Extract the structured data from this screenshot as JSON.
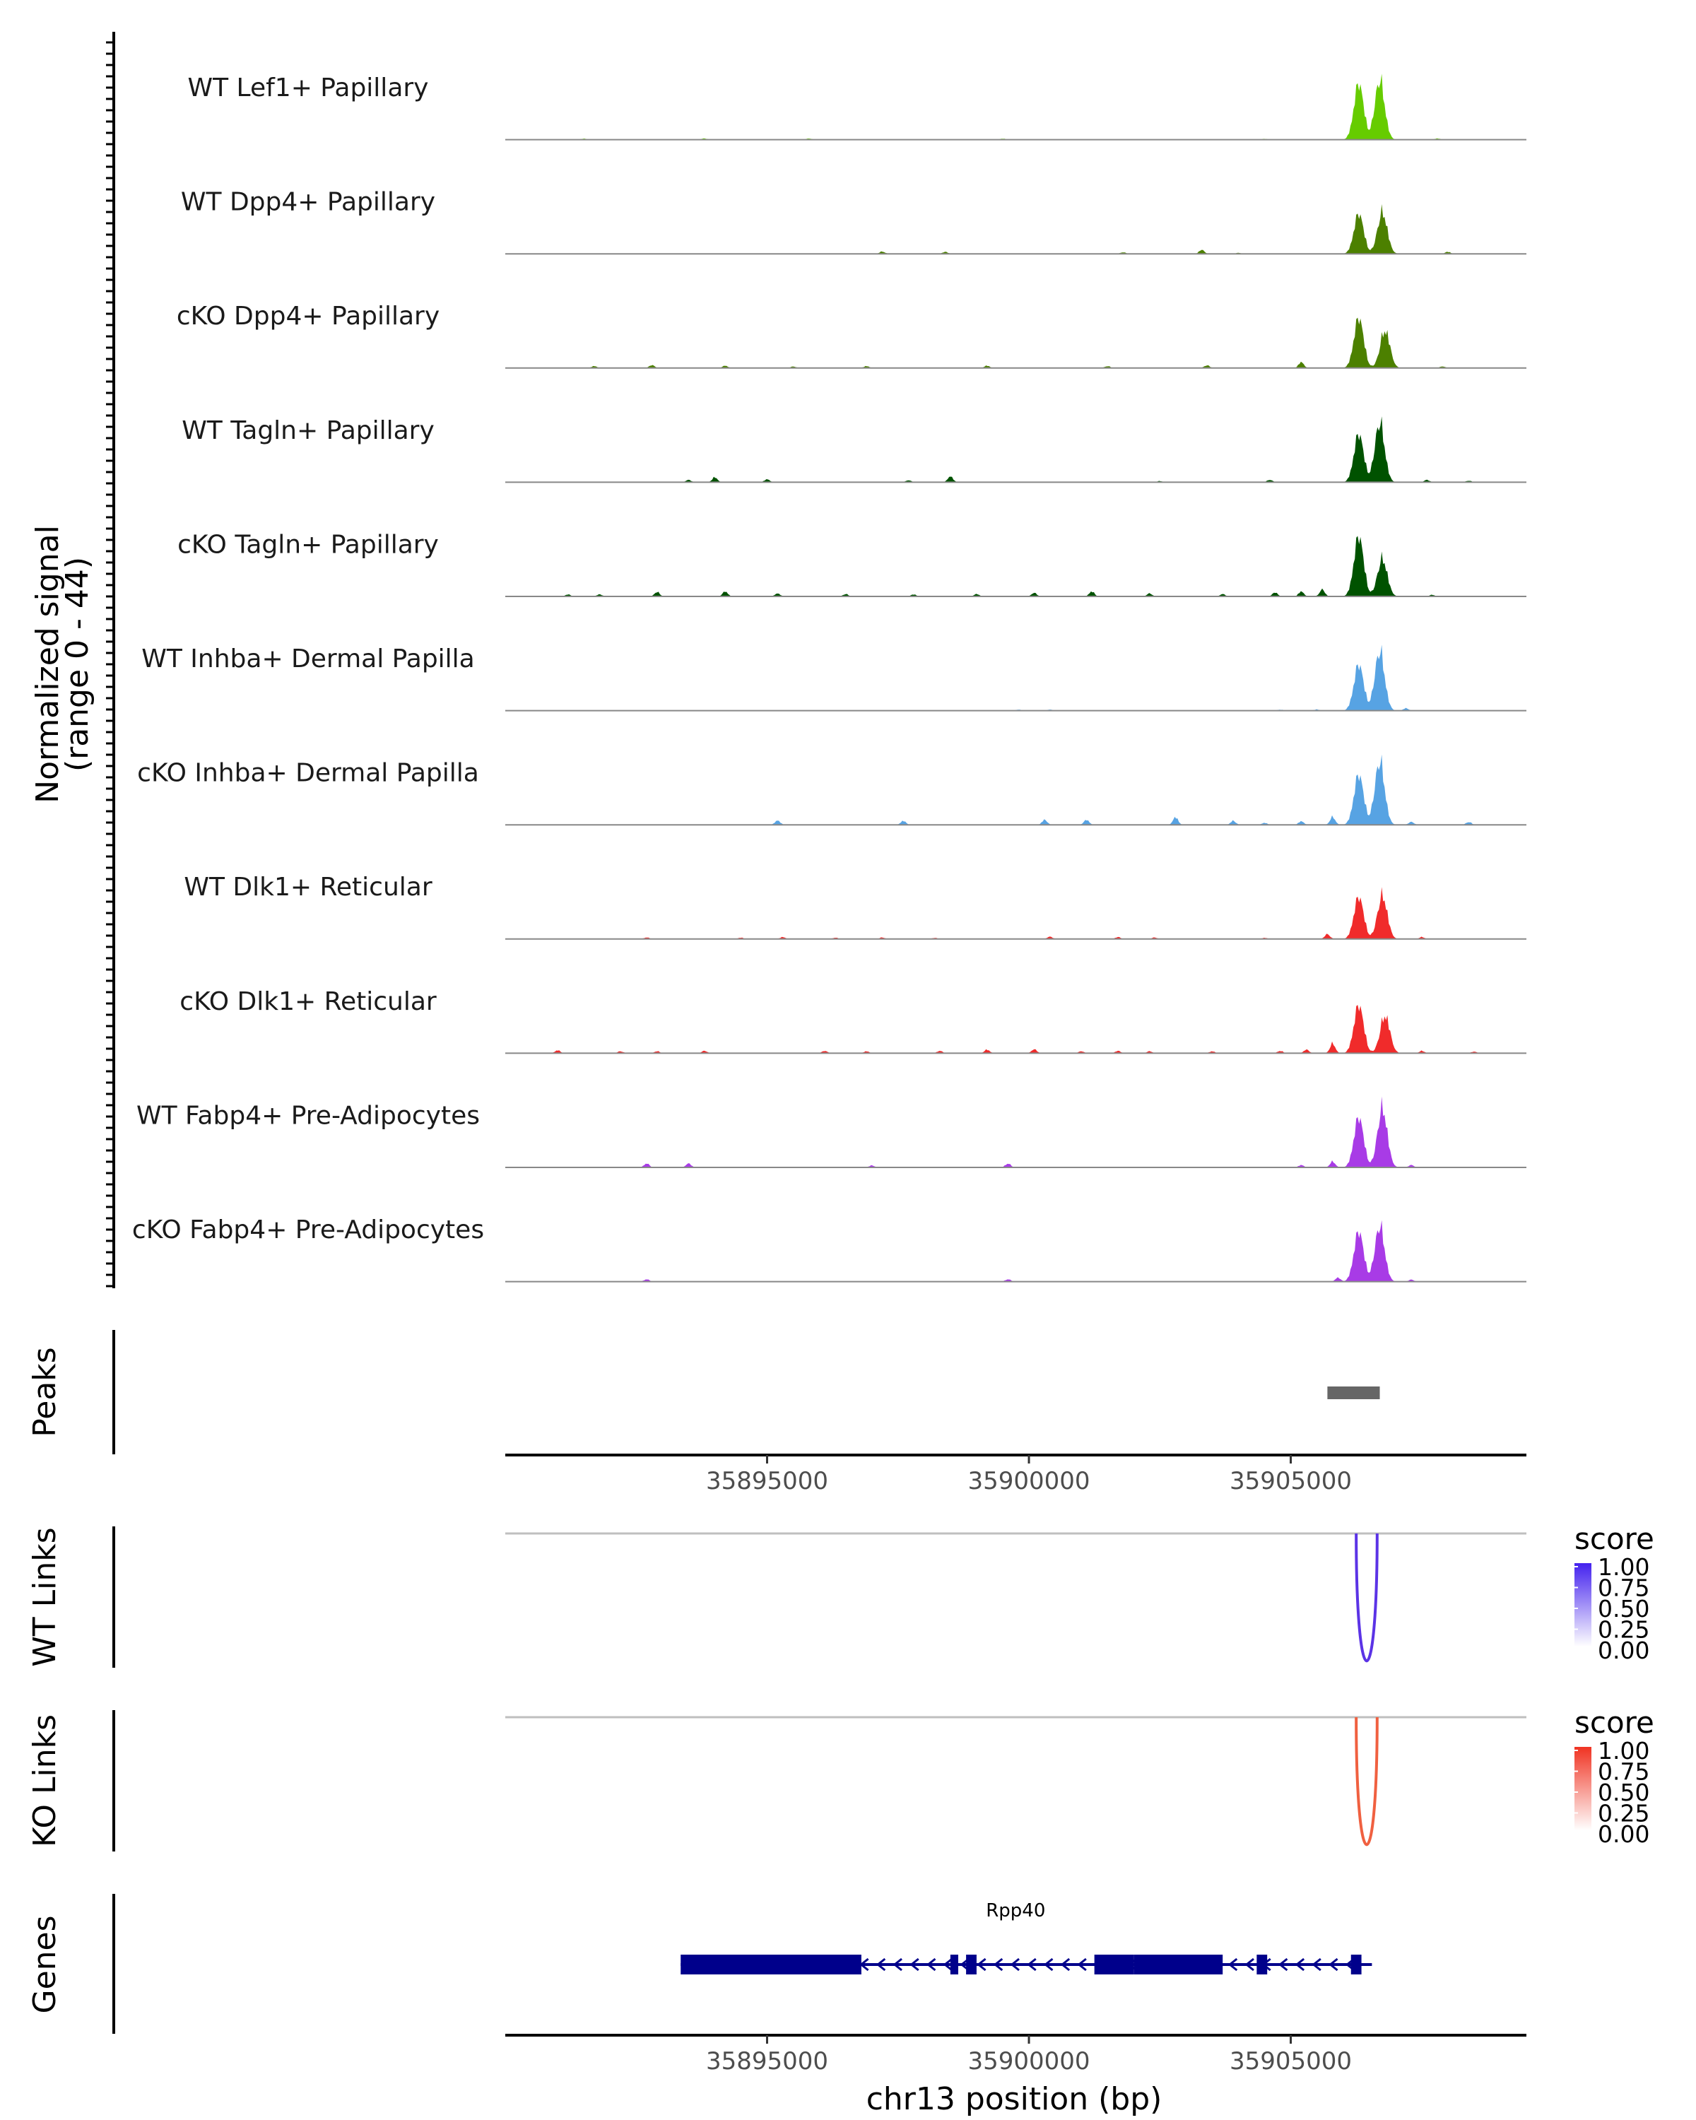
{
  "chart_data": {
    "type": "area",
    "title": "",
    "region": {
      "chrom": "chr13",
      "start": 35890000,
      "end": 35909500
    },
    "ylabel": {
      "line1": "Normalized signal",
      "line2": "(range 0 - 44)"
    },
    "ylim": [
      0,
      44
    ],
    "xlabel": "chr13 position (bp)",
    "x_ticks": [
      {
        "value": 35895000,
        "label": "35895000"
      },
      {
        "value": 35900000,
        "label": "35900000"
      },
      {
        "value": 35905000,
        "label": "35905000"
      }
    ],
    "tracks": [
      {
        "name": "WT Lef1+ Papillary",
        "color": "#66cc00",
        "peaks": [
          [
            35906300,
            28
          ],
          [
            35906700,
            30
          ]
        ],
        "noise": [
          [
            35891500,
            0.5
          ],
          [
            35893800,
            0.6
          ],
          [
            35895800,
            0.6
          ],
          [
            35899500,
            0.5
          ],
          [
            35904500,
            0.4
          ],
          [
            35907800,
            0.6
          ]
        ]
      },
      {
        "name": "WT Dpp4+ Papillary",
        "color": "#4c8000",
        "peaks": [
          [
            35906300,
            20
          ],
          [
            35906750,
            21
          ]
        ],
        "noise": [
          [
            35897200,
            1.2
          ],
          [
            35898400,
            1.0
          ],
          [
            35901800,
            0.8
          ],
          [
            35903300,
            2.0
          ],
          [
            35904000,
            0.5
          ],
          [
            35908000,
            1.0
          ]
        ]
      },
      {
        "name": "cKO Dpp4+ Papillary",
        "color": "#4c8000",
        "peaks": [
          [
            35906300,
            25
          ],
          [
            35906800,
            19
          ]
        ],
        "noise": [
          [
            35891700,
            1.0
          ],
          [
            35892800,
            1.5
          ],
          [
            35894200,
            1.2
          ],
          [
            35895500,
            0.8
          ],
          [
            35896900,
            1.0
          ],
          [
            35899200,
            1.2
          ],
          [
            35901500,
            1.0
          ],
          [
            35903400,
            1.4
          ],
          [
            35905200,
            3.0
          ],
          [
            35907900,
            0.8
          ]
        ]
      },
      {
        "name": "WT Tagln+ Papillary",
        "color": "#005200",
        "peaks": [
          [
            35906300,
            24
          ],
          [
            35906700,
            30
          ]
        ],
        "noise": [
          [
            35893500,
            1.2
          ],
          [
            35894000,
            2.5
          ],
          [
            35895000,
            1.5
          ],
          [
            35897700,
            1.0
          ],
          [
            35898500,
            3.0
          ],
          [
            35902500,
            0.6
          ],
          [
            35904600,
            1.2
          ],
          [
            35907600,
            1.2
          ],
          [
            35908400,
            0.8
          ]
        ]
      },
      {
        "name": "cKO Tagln+ Papillary",
        "color": "#005200",
        "peaks": [
          [
            35906300,
            30
          ],
          [
            35906750,
            19
          ]
        ],
        "noise": [
          [
            35891200,
            1.0
          ],
          [
            35891800,
            1.0
          ],
          [
            35892900,
            2.2
          ],
          [
            35894200,
            2.5
          ],
          [
            35895200,
            1.5
          ],
          [
            35896500,
            1.2
          ],
          [
            35897800,
            1.0
          ],
          [
            35899000,
            1.2
          ],
          [
            35900100,
            1.8
          ],
          [
            35901200,
            2.5
          ],
          [
            35902300,
            1.5
          ],
          [
            35903700,
            1.2
          ],
          [
            35904700,
            2.0
          ],
          [
            35905200,
            2.5
          ],
          [
            35905600,
            3.5
          ],
          [
            35907700,
            0.8
          ]
        ]
      },
      {
        "name": "WT Inhba+ Dermal Papilla",
        "color": "#57a3e3",
        "peaks": [
          [
            35906300,
            23
          ],
          [
            35906700,
            30
          ]
        ],
        "noise": [
          [
            35899800,
            0.5
          ],
          [
            35900400,
            0.5
          ],
          [
            35904800,
            0.5
          ],
          [
            35905500,
            0.6
          ],
          [
            35907200,
            1.2
          ]
        ]
      },
      {
        "name": "cKO Inhba+ Dermal Papilla",
        "color": "#57a3e3",
        "peaks": [
          [
            35906300,
            25
          ],
          [
            35906700,
            32
          ]
        ],
        "noise": [
          [
            35895200,
            2.2
          ],
          [
            35897600,
            2.0
          ],
          [
            35900300,
            2.5
          ],
          [
            35901100,
            2.5
          ],
          [
            35902800,
            3.8
          ],
          [
            35903900,
            2.0
          ],
          [
            35904500,
            1.0
          ],
          [
            35905200,
            1.8
          ],
          [
            35905800,
            4.0
          ],
          [
            35907300,
            1.5
          ],
          [
            35908400,
            1.5
          ]
        ]
      },
      {
        "name": "WT Dlk1+ Reticular",
        "color": "#f02b2b",
        "peaks": [
          [
            35906300,
            21
          ],
          [
            35906750,
            22
          ]
        ],
        "noise": [
          [
            35892700,
            0.8
          ],
          [
            35894500,
            0.7
          ],
          [
            35895300,
            1.0
          ],
          [
            35896300,
            0.7
          ],
          [
            35897200,
            0.8
          ],
          [
            35898200,
            0.6
          ],
          [
            35900400,
            1.2
          ],
          [
            35901700,
            1.0
          ],
          [
            35902400,
            0.8
          ],
          [
            35904500,
            0.6
          ],
          [
            35905700,
            2.5
          ],
          [
            35907500,
            1.0
          ]
        ]
      },
      {
        "name": "cKO Dlk1+ Reticular",
        "color": "#f02b2b",
        "peaks": [
          [
            35906300,
            24
          ],
          [
            35906800,
            19
          ]
        ],
        "noise": [
          [
            35891000,
            1.5
          ],
          [
            35892200,
            1.0
          ],
          [
            35892900,
            1.0
          ],
          [
            35893800,
            1.2
          ],
          [
            35896100,
            1.2
          ],
          [
            35896900,
            1.0
          ],
          [
            35898300,
            1.2
          ],
          [
            35899200,
            1.8
          ],
          [
            35900100,
            2.0
          ],
          [
            35901000,
            1.0
          ],
          [
            35901700,
            1.2
          ],
          [
            35902300,
            1.0
          ],
          [
            35903500,
            1.0
          ],
          [
            35904800,
            1.2
          ],
          [
            35905300,
            1.8
          ],
          [
            35905800,
            5.0
          ],
          [
            35907500,
            1.2
          ],
          [
            35908500,
            0.8
          ]
        ]
      },
      {
        "name": "WT Fabp4+ Pre-Adipocytes",
        "color": "#a83be6",
        "peaks": [
          [
            35906300,
            25
          ],
          [
            35906750,
            30
          ]
        ],
        "noise": [
          [
            35892700,
            2.0
          ],
          [
            35893500,
            2.0
          ],
          [
            35897000,
            1.0
          ],
          [
            35899600,
            2.0
          ],
          [
            35905200,
            1.2
          ],
          [
            35905800,
            3.0
          ],
          [
            35907300,
            1.2
          ]
        ]
      },
      {
        "name": "cKO Fabp4+ Pre-Adipocytes",
        "color": "#a83be6",
        "peaks": [
          [
            35906300,
            25
          ],
          [
            35906700,
            28
          ]
        ],
        "noise": [
          [
            35892700,
            1.2
          ],
          [
            35899600,
            1.2
          ],
          [
            35905900,
            2.0
          ],
          [
            35907300,
            1.0
          ]
        ]
      }
    ],
    "peaks_track": {
      "label": "Peaks",
      "color": "#666666",
      "regions": [
        [
          35905700,
          35906700
        ]
      ]
    },
    "links_tracks": [
      {
        "label": "WT Links",
        "color": "#5b33e6",
        "legend_title": "score",
        "legend_values": [
          "1.00",
          "0.75",
          "0.50",
          "0.25",
          "0.00"
        ],
        "legend_color": "#4422ee",
        "links": [
          {
            "start": 35906250,
            "end": 35906650,
            "score": 0.9
          }
        ]
      },
      {
        "label": "KO Links",
        "color": "#f06040",
        "legend_title": "score",
        "legend_values": [
          "1.00",
          "0.75",
          "0.50",
          "0.25",
          "0.00"
        ],
        "legend_color": "#f03322",
        "links": [
          {
            "start": 35906250,
            "end": 35906650,
            "score": 0.7
          }
        ]
      }
    ],
    "genes_track": {
      "label": "Genes",
      "color": "#00008b",
      "genes": [
        {
          "name": "Rpp40",
          "start": 35893350,
          "end": 35906550,
          "strand": "-",
          "exons": [
            [
              35893350,
              35896800
            ],
            [
              35898500,
              35898650
            ],
            [
              35898800,
              35899000
            ],
            [
              35901250,
              35902000
            ],
            [
              35902000,
              35903700
            ],
            [
              35904350,
              35904550
            ],
            [
              35906150,
              35906350
            ]
          ]
        }
      ]
    }
  }
}
